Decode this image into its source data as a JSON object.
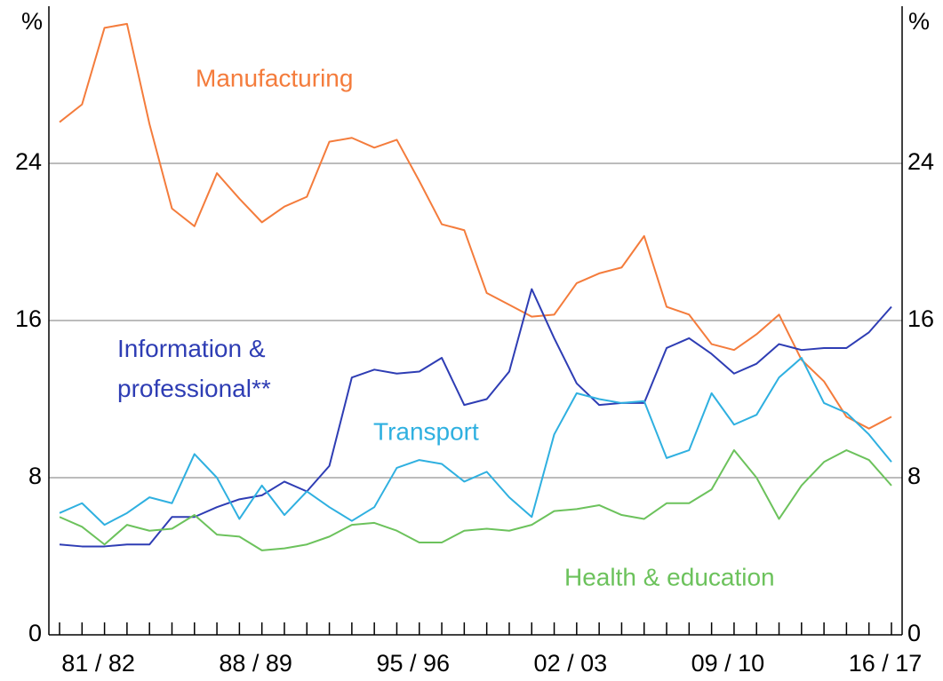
{
  "chart_data": {
    "type": "line",
    "y_unit": "%",
    "categories": [
      null,
      null,
      "81 / 82",
      null,
      null,
      null,
      null,
      null,
      null,
      "88 / 89",
      null,
      null,
      null,
      null,
      null,
      null,
      "95 / 96",
      null,
      null,
      null,
      null,
      null,
      null,
      "02 / 03",
      null,
      null,
      null,
      null,
      null,
      null,
      "09 / 10",
      null,
      null,
      null,
      null,
      null,
      null,
      "16 / 17"
    ],
    "ylim": [
      0,
      32
    ],
    "yticks": [
      0,
      8,
      16,
      24
    ],
    "y2lim": [
      0,
      32
    ],
    "y2ticks": [
      0,
      8,
      16,
      24
    ],
    "grid": true,
    "series": [
      {
        "name": "Manufacturing",
        "color": "#f47c3c",
        "values": [
          26.1,
          27.0,
          30.9,
          31.1,
          26.0,
          21.7,
          20.8,
          23.5,
          22.2,
          21.0,
          21.8,
          22.3,
          25.1,
          25.3,
          24.8,
          25.2,
          23.1,
          20.9,
          20.6,
          17.4,
          16.8,
          16.2,
          16.3,
          17.9,
          18.4,
          18.7,
          20.3,
          16.7,
          16.3,
          14.8,
          14.5,
          15.3,
          16.3,
          14.0,
          12.9,
          11.1,
          10.5,
          11.1
        ]
      },
      {
        "name": "Information & professional**",
        "color": "#2e3db4",
        "values": [
          4.6,
          4.5,
          4.5,
          4.6,
          4.6,
          6.0,
          6.0,
          6.5,
          6.9,
          7.1,
          7.8,
          7.3,
          8.6,
          13.1,
          13.5,
          13.3,
          13.4,
          14.1,
          11.7,
          12.0,
          13.4,
          17.6,
          15.1,
          12.8,
          11.7,
          11.8,
          11.8,
          14.6,
          15.1,
          14.3,
          13.3,
          13.8,
          14.8,
          14.5,
          14.6,
          14.6,
          15.4,
          16.7
        ]
      },
      {
        "name": "Transport",
        "color": "#2fb0e0",
        "values": [
          6.2,
          6.7,
          5.6,
          6.2,
          7.0,
          6.7,
          9.2,
          8.0,
          5.9,
          7.6,
          6.1,
          7.3,
          6.5,
          5.8,
          6.5,
          8.5,
          8.9,
          8.7,
          7.8,
          8.3,
          7.0,
          6.0,
          10.2,
          12.3,
          12.0,
          11.8,
          11.9,
          9.0,
          9.4,
          12.3,
          10.7,
          11.2,
          13.1,
          14.1,
          11.8,
          11.3,
          10.2,
          8.8
        ]
      },
      {
        "name": "Health & education",
        "color": "#6cc25c",
        "values": [
          6.0,
          5.5,
          4.6,
          5.6,
          5.3,
          5.4,
          6.1,
          5.1,
          5.0,
          4.3,
          4.4,
          4.6,
          5.0,
          5.6,
          5.7,
          5.3,
          4.7,
          4.7,
          5.3,
          5.4,
          5.3,
          5.6,
          6.3,
          6.4,
          6.6,
          6.1,
          5.9,
          6.7,
          6.7,
          7.4,
          9.4,
          8.0,
          5.9,
          7.6,
          8.8,
          9.4,
          8.9,
          7.6
        ]
      }
    ]
  }
}
